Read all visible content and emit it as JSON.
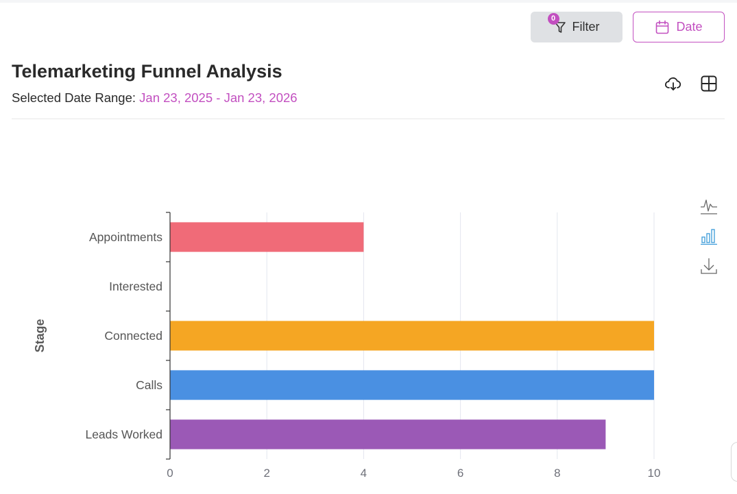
{
  "header": {
    "filter_label": "Filter",
    "filter_count": "0",
    "date_label": "Date",
    "title": "Telemarketing Funnel Analysis",
    "date_range_prefix": "Selected Date Range:",
    "date_range_value": "Jan 23, 2025 - Jan 23, 2026"
  },
  "icons": {
    "download": "cloud-download-icon",
    "table": "table-grid-icon",
    "line_toggle": "line-chart-icon",
    "bar_toggle": "bar-chart-icon",
    "save": "save-image-icon"
  },
  "colors": {
    "accent": "#c24fc0",
    "active_toolbox": "#3a9ad9"
  },
  "chart_data": {
    "type": "bar",
    "orientation": "horizontal",
    "ylabel": "Stage",
    "xlabel": "",
    "categories": [
      "Leads Worked",
      "Calls",
      "Connected",
      "Interested",
      "Appointments"
    ],
    "values": [
      9,
      10,
      10,
      0,
      4
    ],
    "colors": [
      "#9b59b6",
      "#4a90e2",
      "#f5a623",
      "#5cb85c",
      "#f06b78"
    ],
    "xlim": [
      0,
      10
    ],
    "xticks": [
      "0",
      "2",
      "4",
      "6",
      "8",
      "10"
    ],
    "grid": true
  }
}
